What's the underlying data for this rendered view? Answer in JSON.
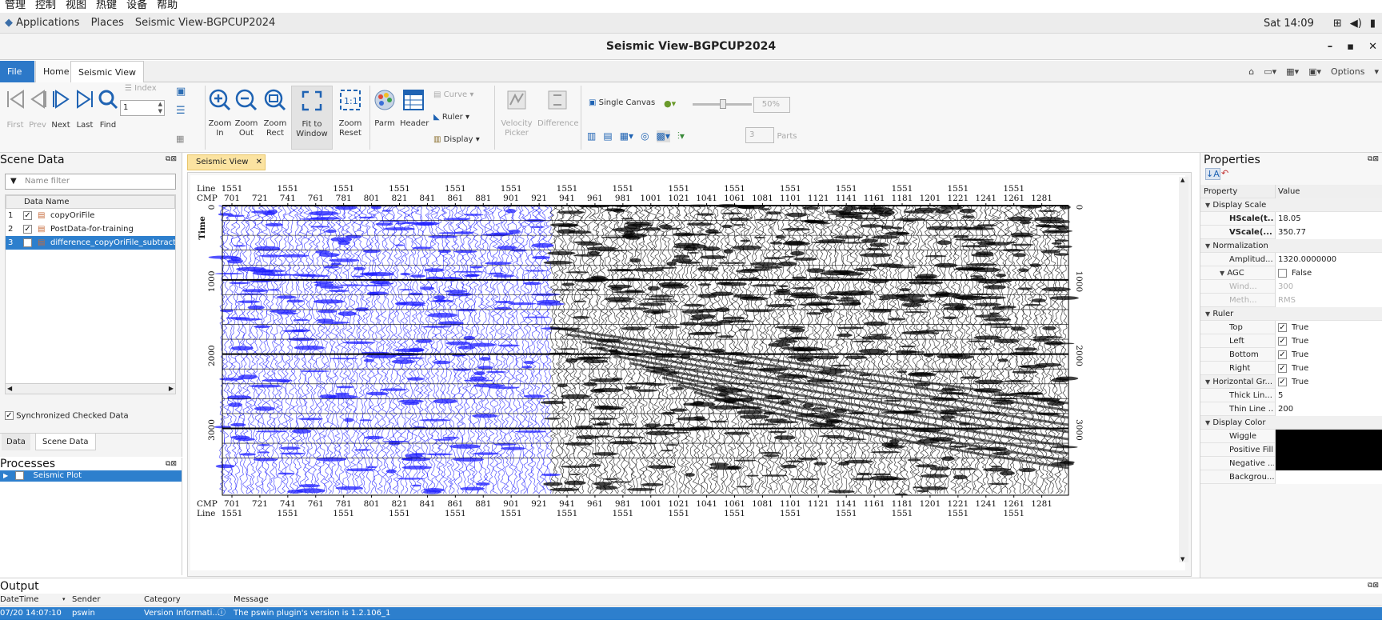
{
  "vm_menu": [
    "管理",
    "控制",
    "视图",
    "热键",
    "设备",
    "帮助"
  ],
  "gnome": {
    "applications": "Applications",
    "places": "Places",
    "app": "Seismic View-BGPCUP2024",
    "clock": "Sat 14:09"
  },
  "window": {
    "title": "Seismic View-BGPCUP2024",
    "btn_min": "–",
    "btn_max": "▪",
    "btn_close": "✕"
  },
  "tabs": {
    "file": "File",
    "home": "Home",
    "seismic_view": "Seismic View",
    "options": "Options"
  },
  "ribbon": {
    "first": "First",
    "prev": "Prev",
    "next": "Next",
    "last": "Last",
    "find": "Find",
    "index_label": "Index",
    "index_value": "1",
    "zoom_in": "Zoom\nIn",
    "zoom_out": "Zoom\nOut",
    "zoom_rect": "Zoom\nRect",
    "fit_window": "Fit to\nWindow",
    "zoom_reset": "Zoom\nReset",
    "parm": "Parm",
    "header": "Header",
    "curve": "Curve",
    "ruler": "Ruler",
    "display": "Display",
    "velocity_picker": "Velocity\nPicker",
    "difference": "Difference",
    "single_canvas": "Single Canvas",
    "zoom_percent": "50%",
    "parts_value": "3",
    "parts": "Parts"
  },
  "scene_data": {
    "title": "Scene Data",
    "filter_placeholder": "Name filter",
    "col_name": "Data Name",
    "rows": [
      {
        "idx": "1",
        "checked": true,
        "name": "copyOriFile"
      },
      {
        "idx": "2",
        "checked": true,
        "name": "PostData-for-training"
      },
      {
        "idx": "3",
        "checked": false,
        "name": "difference_copyOriFile_subtract_P"
      }
    ],
    "sync_label": "Synchronized Checked Data",
    "tab_data": "Data",
    "tab_scene": "Scene Data"
  },
  "processes": {
    "title": "Processes",
    "item": "Seismic Plot"
  },
  "view_tab": {
    "label": "Seismic View",
    "close": "✕"
  },
  "axes": {
    "line_label": "Line",
    "cmp_label": "CMP",
    "time_label": "Time",
    "cmp_ticks": [
      "701",
      "721",
      "741",
      "761",
      "781",
      "801",
      "821",
      "841",
      "861",
      "881",
      "901",
      "921",
      "941",
      "961",
      "981",
      "1001",
      "1021",
      "1041",
      "1061",
      "1081",
      "1101",
      "1121",
      "1141",
      "1161",
      "1181",
      "1201",
      "1221",
      "1241",
      "1261",
      "1281"
    ],
    "line_value": "1551",
    "time_ticks": [
      "0",
      "1000",
      "2000",
      "3000"
    ]
  },
  "properties": {
    "title": "Properties",
    "col_property": "Property",
    "col_value": "Value",
    "rows": [
      {
        "type": "group",
        "label": "Display Scale"
      },
      {
        "type": "item",
        "bold": true,
        "label": "HScale(t...",
        "value": "18.05"
      },
      {
        "type": "item",
        "bold": true,
        "label": "VScale(...",
        "value": "350.77"
      },
      {
        "type": "group",
        "label": "Normalization"
      },
      {
        "type": "item",
        "label": "Amplitud...",
        "value": "1320.0000000"
      },
      {
        "type": "sub",
        "label": "AGC",
        "check": false,
        "value": "False"
      },
      {
        "type": "dis",
        "label": "Wind...",
        "value": "300"
      },
      {
        "type": "dis",
        "label": "Meth...",
        "value": "RMS"
      },
      {
        "type": "group",
        "label": "Ruler"
      },
      {
        "type": "item",
        "label": "Top",
        "check": true,
        "value": "True"
      },
      {
        "type": "item",
        "label": "Left",
        "check": true,
        "value": "True"
      },
      {
        "type": "item",
        "label": "Bottom",
        "check": true,
        "value": "True"
      },
      {
        "type": "item",
        "label": "Right",
        "check": true,
        "value": "True"
      },
      {
        "type": "groupv",
        "label": "Horizontal Gr...",
        "check": true,
        "value": "True"
      },
      {
        "type": "item",
        "label": "Thick Lin...",
        "value": "5"
      },
      {
        "type": "item",
        "label": "Thin Line ...",
        "value": "200"
      },
      {
        "type": "group",
        "label": "Display Color"
      },
      {
        "type": "color",
        "label": "Wiggle",
        "color": "#000000"
      },
      {
        "type": "color",
        "label": "Positive Fill",
        "color": "#000000"
      },
      {
        "type": "color",
        "label": "Negative ...",
        "color": "#000000"
      },
      {
        "type": "color",
        "label": "Backgrou...",
        "color": "#ffffff"
      }
    ]
  },
  "output": {
    "title": "Output",
    "cols": [
      "DateTime",
      "Sender",
      "Category",
      "Message"
    ],
    "row": {
      "datetime": "07/20 14:07:10",
      "sender": "pswin",
      "category": "Version Informati...",
      "message": "The pswin plugin's version is 1.2.106_1"
    }
  },
  "colors": {
    "accent": "#2d7fcd",
    "wiggle_blue": "#1a1aff",
    "wiggle_black": "#000000"
  }
}
